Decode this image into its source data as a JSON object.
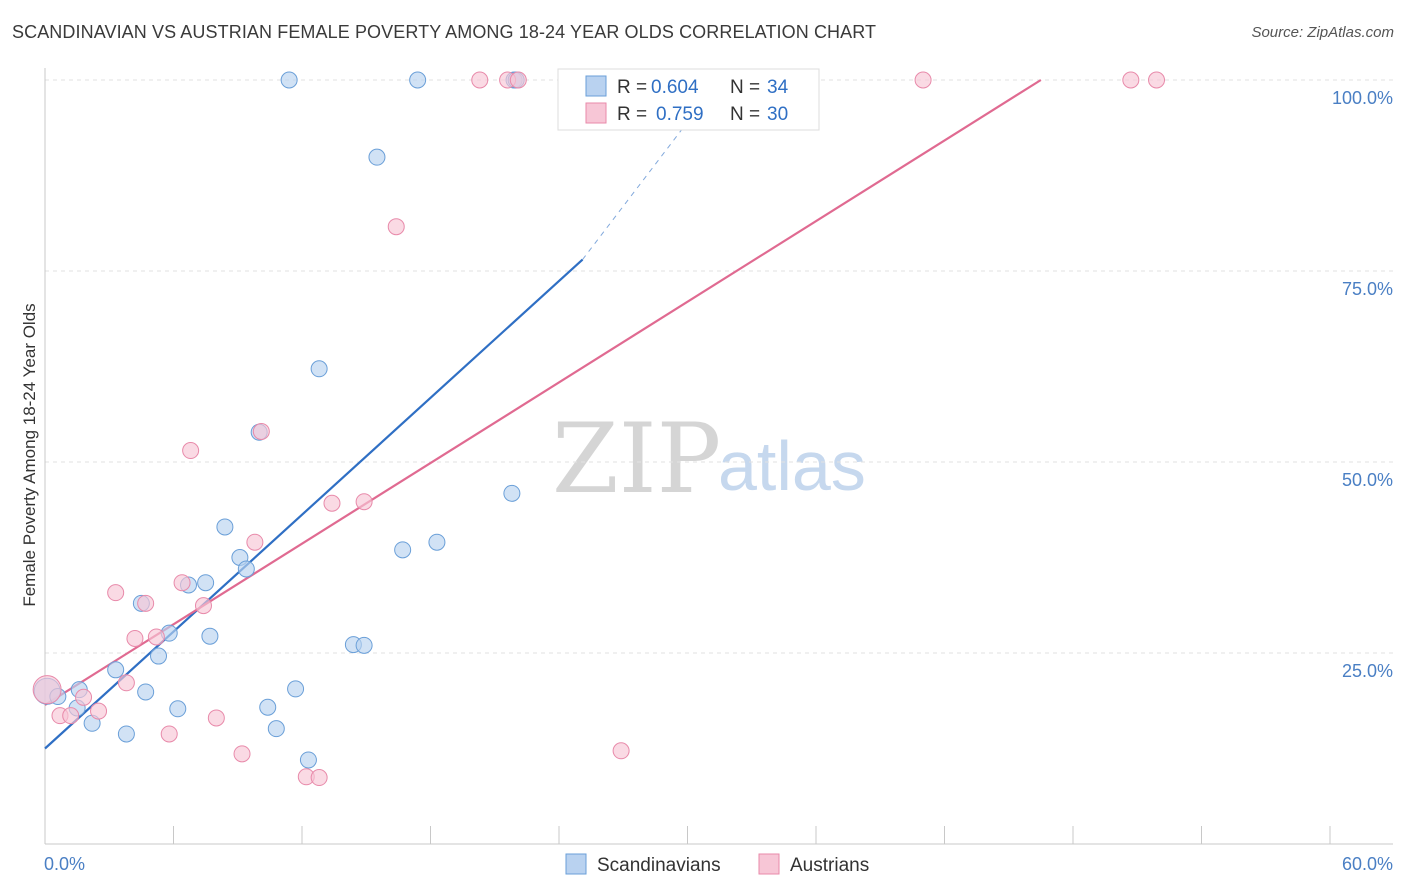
{
  "header": {
    "title": "SCANDINAVIAN VS AUSTRIAN FEMALE POVERTY AMONG 18-24 YEAR OLDS CORRELATION CHART",
    "source": "Source: ZipAtlas.com"
  },
  "watermark": {
    "part1": "ZIP",
    "part2": "atlas"
  },
  "chart_data": {
    "type": "scatter",
    "title": "SCANDINAVIAN VS AUSTRIAN FEMALE POVERTY AMONG 18-24 YEAR OLDS CORRELATION CHART",
    "xlabel": "",
    "ylabel": "Female Poverty Among 18-24 Year Olds",
    "xlim": [
      0,
      60
    ],
    "ylim": [
      0,
      100
    ],
    "x_tick_labels": {
      "min": "0.0%",
      "max": "60.0%"
    },
    "y_tick_labels": [
      "25.0%",
      "50.0%",
      "75.0%",
      "100.0%"
    ],
    "y_ticks": [
      25,
      50,
      75,
      100
    ],
    "grid": true,
    "legend": {
      "position": "top-center",
      "entries": [
        {
          "name": "Scandinavians",
          "r_label": "R =",
          "r_value": "0.604",
          "n_label": "N =",
          "n_value": "34"
        },
        {
          "name": "Austrians",
          "r_label": "R =",
          "r_value": "0.759",
          "n_label": "N =",
          "n_value": "30"
        }
      ]
    },
    "series": [
      {
        "name": "Scandinavians",
        "color": "#6a9fd8",
        "fill": "#b9d2f0",
        "trend_color": "#2f6fc4",
        "trend": {
          "x0": 0,
          "y0": 12.5,
          "x1": 25.1,
          "y1": 76.5,
          "dashed_to_x": 31.5,
          "dashed_to_y": 100
        },
        "points": [
          [
            0.1,
            20
          ],
          [
            0.6,
            19.3
          ],
          [
            1.6,
            20.2
          ],
          [
            1.5,
            17.8
          ],
          [
            2.2,
            15.8
          ],
          [
            3.3,
            22.8
          ],
          [
            3.8,
            14.4
          ],
          [
            4.5,
            31.5
          ],
          [
            4.7,
            19.9
          ],
          [
            5.3,
            24.6
          ],
          [
            5.8,
            27.6
          ],
          [
            6.2,
            17.7
          ],
          [
            6.7,
            33.9
          ],
          [
            7.5,
            34.2
          ],
          [
            7.7,
            27.2
          ],
          [
            8.4,
            41.5
          ],
          [
            9.1,
            37.5
          ],
          [
            9.4,
            36
          ],
          [
            10,
            53.9
          ],
          [
            10.4,
            17.9
          ],
          [
            10.8,
            15.1
          ],
          [
            11.7,
            20.3
          ],
          [
            12.3,
            11
          ],
          [
            12.8,
            62.2
          ],
          [
            14.4,
            26.1
          ],
          [
            14.9,
            26
          ],
          [
            15.5,
            89.9
          ],
          [
            16.7,
            38.5
          ],
          [
            17.4,
            100
          ],
          [
            18.3,
            39.5
          ],
          [
            21.8,
            45.9
          ],
          [
            21.9,
            100
          ],
          [
            11.4,
            100
          ],
          [
            22,
            100
          ]
        ]
      },
      {
        "name": "Austrians",
        "color": "#e88aaa",
        "fill": "#f7c6d6",
        "trend_color": "#e06a91",
        "trend": {
          "x0": 0,
          "y0": 18.2,
          "x1": 46.5,
          "y1": 100
        },
        "points": [
          [
            0.1,
            20.2
          ],
          [
            0.7,
            16.8
          ],
          [
            1.2,
            16.8
          ],
          [
            1.8,
            19.2
          ],
          [
            2.5,
            17.4
          ],
          [
            3.3,
            32.9
          ],
          [
            3.8,
            21.1
          ],
          [
            4.2,
            26.9
          ],
          [
            4.7,
            31.5
          ],
          [
            5.2,
            27.1
          ],
          [
            5.8,
            14.4
          ],
          [
            6.4,
            34.2
          ],
          [
            6.8,
            51.5
          ],
          [
            7.4,
            31.2
          ],
          [
            8,
            16.5
          ],
          [
            9.2,
            11.8
          ],
          [
            9.8,
            39.5
          ],
          [
            10.1,
            54
          ],
          [
            12.2,
            8.8
          ],
          [
            12.8,
            8.7
          ],
          [
            13.4,
            44.6
          ],
          [
            14.9,
            44.8
          ],
          [
            16.4,
            80.8
          ],
          [
            20.3,
            100
          ],
          [
            21.6,
            100
          ],
          [
            26.9,
            12.2
          ],
          [
            41,
            100
          ],
          [
            50.7,
            100
          ],
          [
            51.9,
            100
          ],
          [
            22.1,
            100
          ]
        ]
      }
    ]
  }
}
